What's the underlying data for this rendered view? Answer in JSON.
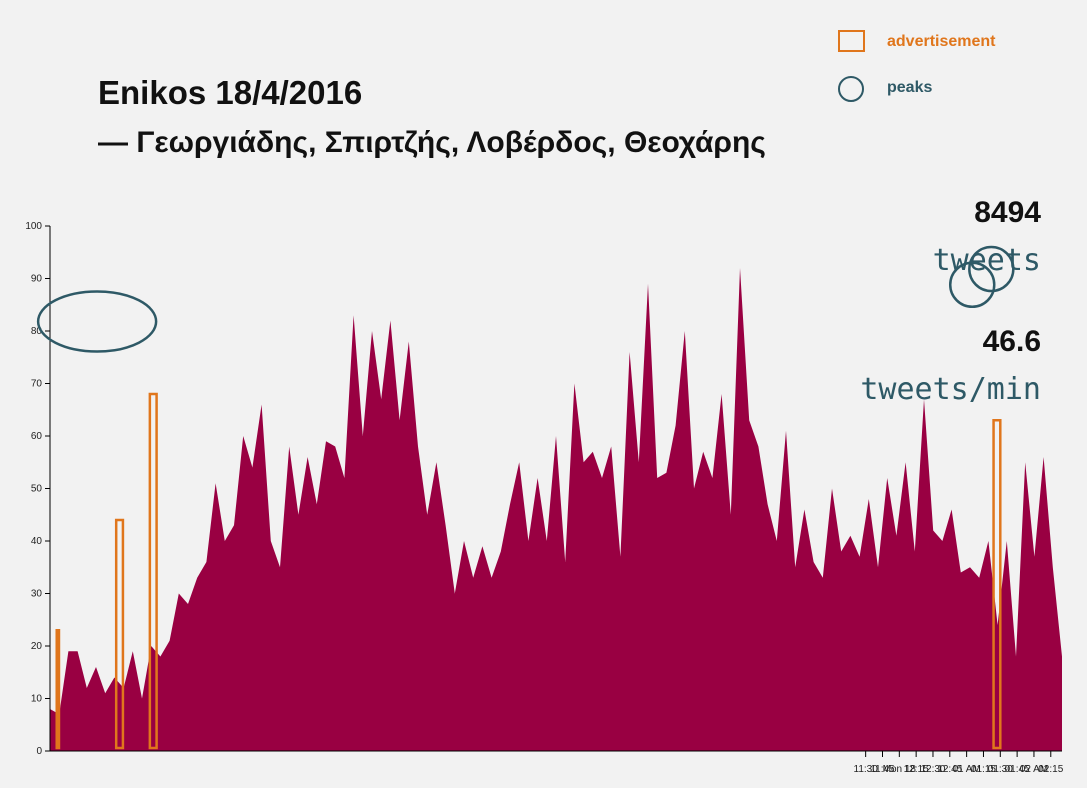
{
  "header": {
    "title": "Enikos 18/4/2016",
    "subtitle": "— Γεωργιάδης, Σπιρτζής, Λοβέρδος, Θεοχάρης"
  },
  "legend": {
    "advertisement": "advertisement",
    "peaks": "peaks"
  },
  "stats": {
    "total_tweets": "8494",
    "total_label": "tweets",
    "rate": "46.6",
    "rate_label": "tweets/min"
  },
  "colors": {
    "area": "#990042",
    "advertisement": "#e0761c",
    "peaks": "#2e5966",
    "background": "#f2f2f2"
  },
  "chart_data": {
    "type": "area",
    "xlim": [
      "11:23",
      "02:25"
    ],
    "ylim": [
      0,
      100
    ],
    "grid": false,
    "x_ticks": [
      "11:30",
      "11:45",
      "Mon 18",
      "12:15",
      "12:30",
      "12:45",
      "01 AM",
      "01:15",
      "01:30",
      "01:45",
      "02 AM",
      "02:15"
    ],
    "y_ticks": [
      "0",
      "10",
      "20",
      "30",
      "40",
      "50",
      "60",
      "70",
      "80",
      "90",
      "100"
    ],
    "series": [
      {
        "values": [
          8,
          7,
          19,
          19,
          12,
          16,
          11,
          14,
          12,
          19,
          10,
          20,
          18,
          21,
          30,
          28,
          33,
          36,
          51,
          40,
          43,
          60,
          54,
          66,
          40,
          35,
          58,
          45,
          56,
          47,
          59,
          58,
          52,
          83,
          60,
          80,
          67,
          82,
          63,
          78,
          58,
          45,
          55,
          43,
          30,
          40,
          33,
          39,
          33,
          38,
          47,
          55,
          40,
          52,
          40,
          60,
          36,
          70,
          55,
          57,
          52,
          58,
          37,
          76,
          55,
          89,
          52,
          53,
          62,
          80,
          50,
          57,
          52,
          68,
          45,
          92,
          63,
          58,
          47,
          40,
          61,
          35,
          46,
          36,
          33,
          50,
          38,
          41,
          37,
          48,
          35,
          52,
          41,
          55,
          38,
          67,
          42,
          40,
          46,
          34,
          35,
          33,
          40,
          24,
          40,
          18,
          55,
          37,
          56,
          35,
          18
        ],
        "anchors_minutes": [
          0,
          2,
          4,
          6,
          8,
          10,
          12,
          14,
          16,
          18,
          20,
          22,
          24,
          26,
          28,
          30,
          32,
          34,
          36,
          38,
          40,
          42,
          44,
          46,
          48,
          50,
          52,
          54,
          56,
          58,
          60,
          62,
          64,
          66,
          68,
          70,
          72,
          74,
          76,
          78,
          80,
          82,
          84,
          86,
          88,
          90,
          92,
          94,
          96,
          98,
          100,
          102,
          104,
          106,
          108,
          110,
          112,
          114,
          116,
          118,
          120,
          122,
          124,
          126,
          128,
          130,
          132,
          134,
          136,
          138,
          140,
          142,
          144,
          146,
          148,
          150,
          152,
          154,
          156,
          158,
          160,
          162,
          164,
          166,
          168,
          170,
          172,
          174,
          176,
          178,
          180,
          182,
          184,
          186,
          188,
          190,
          192,
          194,
          196,
          198,
          200,
          202,
          204,
          206,
          208,
          210,
          212,
          214,
          216,
          218,
          220
        ]
      }
    ],
    "advertisements": [
      {
        "start": "11:29",
        "end": "11:31",
        "peak": 23
      },
      {
        "start": "12:22",
        "end": "12:28",
        "peak": 44
      },
      {
        "start": "12:52",
        "end": "12:58",
        "peak": 68
      },
      {
        "start": "01:24",
        "end": "01:30",
        "peak": 63
      }
    ],
    "peaks": [
      {
        "time": "12:05",
        "value": 82
      },
      {
        "time": "01:05",
        "value": 89
      },
      {
        "time": "01:22",
        "value": 92
      }
    ]
  }
}
